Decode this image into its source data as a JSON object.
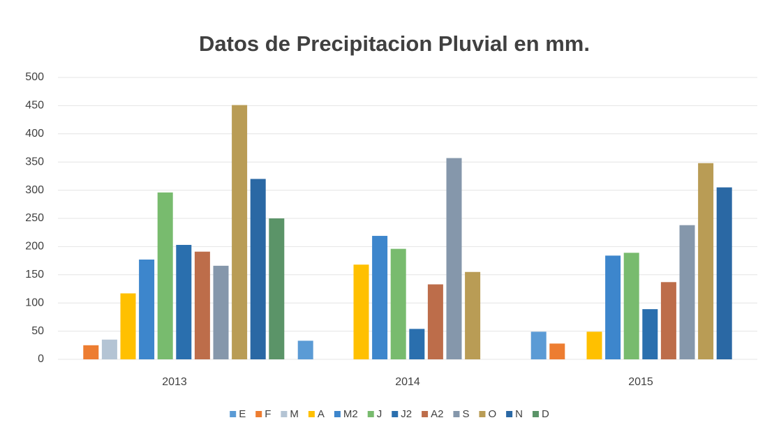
{
  "chart_data": {
    "type": "bar",
    "title": "Datos de Precipitacion Pluvial en mm.",
    "categories": [
      "2013",
      "2014",
      "2015"
    ],
    "series": [
      {
        "name": "E",
        "color": "#5b9bd5",
        "values": [
          0,
          33,
          49
        ]
      },
      {
        "name": "F",
        "color": "#ed7d31",
        "values": [
          25,
          0,
          28
        ]
      },
      {
        "name": "M",
        "color": "#b4c4d4",
        "values": [
          35,
          0,
          0
        ]
      },
      {
        "name": "A",
        "color": "#ffc000",
        "values": [
          117,
          168,
          49
        ]
      },
      {
        "name": "M2",
        "color": "#3d86cc",
        "values": [
          177,
          219,
          184
        ]
      },
      {
        "name": "J",
        "color": "#78bb6e",
        "values": [
          296,
          196,
          189
        ]
      },
      {
        "name": "J2",
        "color": "#2a6fae",
        "values": [
          203,
          54,
          89
        ]
      },
      {
        "name": "A2",
        "color": "#bd6d4a",
        "values": [
          191,
          133,
          137
        ]
      },
      {
        "name": "S",
        "color": "#8597ab",
        "values": [
          166,
          357,
          238
        ]
      },
      {
        "name": "O",
        "color": "#b99c55",
        "values": [
          451,
          155,
          348
        ]
      },
      {
        "name": "N",
        "color": "#2a68a4",
        "values": [
          320,
          0,
          305
        ]
      },
      {
        "name": "D",
        "color": "#5b9468",
        "values": [
          250,
          0,
          0
        ]
      }
    ],
    "ylim": [
      0,
      500
    ],
    "yticks": [
      0,
      50,
      100,
      150,
      200,
      250,
      300,
      350,
      400,
      450,
      500
    ],
    "grid": true,
    "legend": "bottom"
  }
}
